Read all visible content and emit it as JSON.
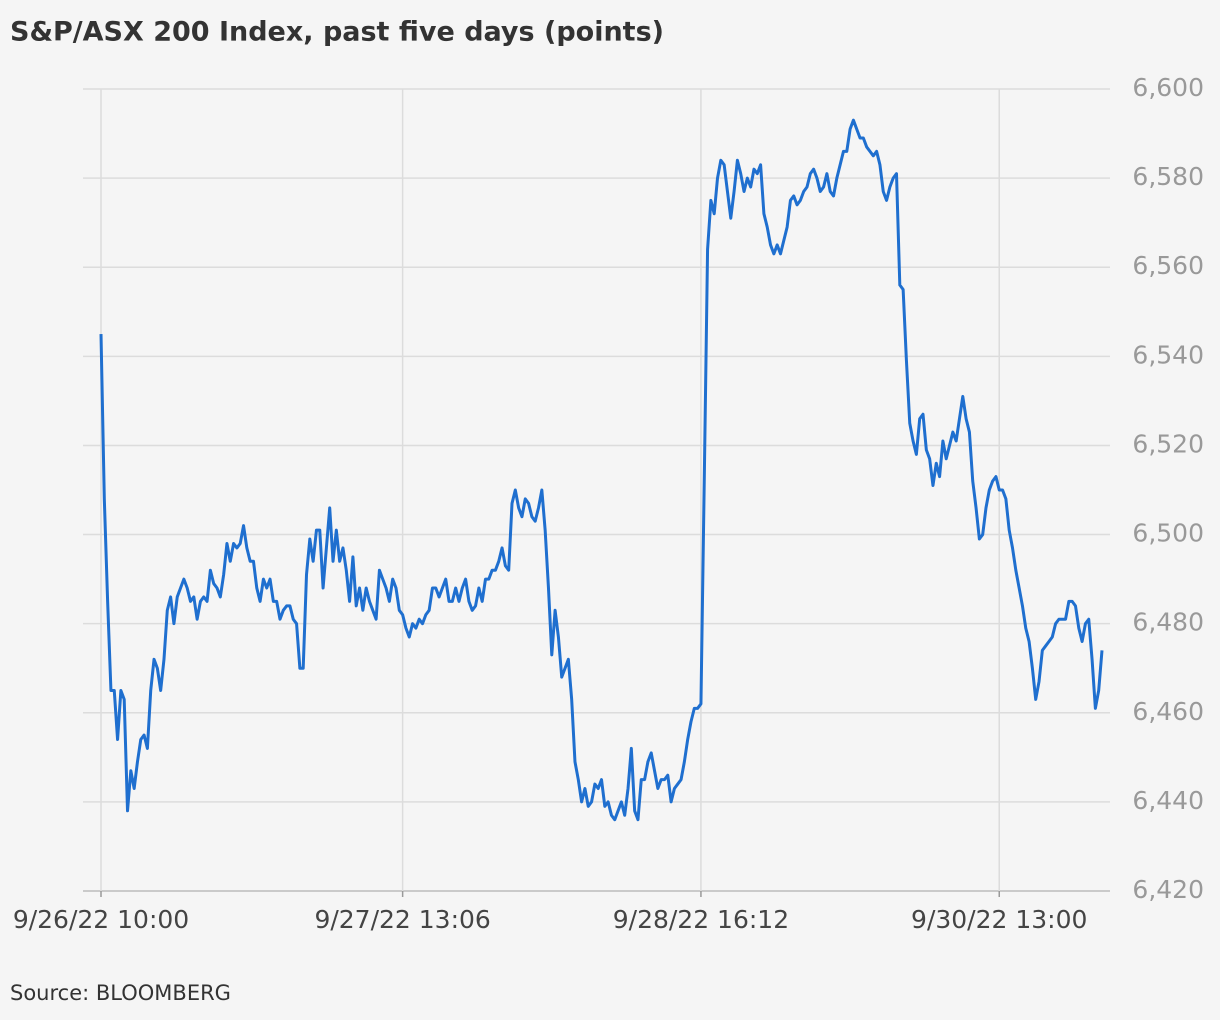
{
  "chart_data": {
    "type": "line",
    "title": "S&P/ASX 200 Index, past five days (points)",
    "source": "Source: BLOOMBERG",
    "color": "#1f6fcf",
    "grid": true,
    "ylim": [
      6420,
      6600
    ],
    "yticks": [
      {
        "value": 6420,
        "label": "6,420"
      },
      {
        "value": 6440,
        "label": "6,440"
      },
      {
        "value": 6460,
        "label": "6,460"
      },
      {
        "value": 6480,
        "label": "6,480"
      },
      {
        "value": 6500,
        "label": "6,500"
      },
      {
        "value": 6520,
        "label": "6,520"
      },
      {
        "value": 6540,
        "label": "6,540"
      },
      {
        "value": 6560,
        "label": "6,560"
      },
      {
        "value": 6580,
        "label": "6,580"
      },
      {
        "value": 6600,
        "label": "6,600"
      }
    ],
    "categories": [
      "9/26/22 10:00",
      null,
      null,
      null,
      null,
      null,
      null,
      null,
      null,
      null,
      null,
      null,
      null,
      null,
      null,
      null,
      null,
      null,
      null,
      null,
      null,
      null,
      null,
      null,
      null,
      null,
      null,
      null,
      null,
      null,
      null,
      null,
      null,
      null,
      null,
      null,
      null,
      null,
      null,
      null,
      null,
      null,
      null,
      null,
      null,
      null,
      null,
      null,
      null,
      null,
      null,
      null,
      null,
      null,
      null,
      null,
      null,
      null,
      null,
      null,
      null,
      null,
      null,
      null,
      null,
      null,
      null,
      null,
      null,
      null,
      null,
      null,
      null,
      null,
      null,
      null,
      null,
      null,
      null,
      null,
      null,
      null,
      null,
      null,
      null,
      null,
      null,
      null,
      null,
      null,
      null,
      "9/27/22 13:06",
      null,
      null,
      null,
      null,
      null,
      null,
      null,
      null,
      null,
      null,
      null,
      null,
      null,
      null,
      null,
      null,
      null,
      null,
      null,
      null,
      null,
      null,
      null,
      null,
      null,
      null,
      null,
      null,
      null,
      null,
      null,
      null,
      null,
      null,
      null,
      null,
      null,
      null,
      null,
      null,
      null,
      null,
      null,
      null,
      null,
      null,
      null,
      null,
      null,
      null,
      null,
      null,
      null,
      null,
      null,
      null,
      null,
      null,
      null,
      null,
      null,
      null,
      null,
      null,
      null,
      null,
      null,
      null,
      null,
      null,
      null,
      null,
      null,
      null,
      null,
      null,
      null,
      null,
      null,
      null,
      null,
      null,
      null,
      null,
      null,
      null,
      null,
      null,
      null,
      "9/28/22 16:12",
      null,
      null,
      null,
      null,
      null,
      null,
      null,
      null,
      null,
      null,
      null,
      null,
      null,
      null,
      null,
      null,
      null,
      null,
      null,
      null,
      null,
      null,
      null,
      null,
      null,
      null,
      null,
      null,
      null,
      null,
      null,
      null,
      null,
      null,
      null,
      null,
      null,
      null,
      null,
      null,
      null,
      null,
      null,
      null,
      null,
      null,
      null,
      null,
      null,
      null,
      null,
      null,
      null,
      null,
      null,
      null,
      null,
      null,
      null,
      null,
      null,
      null,
      null,
      null,
      null,
      null,
      null,
      null,
      null,
      null,
      null,
      null,
      null,
      null,
      null,
      null,
      null,
      null,
      null,
      null,
      null,
      null,
      null,
      null,
      null,
      null,
      null,
      null,
      null,
      "9/30/22 13:00",
      null,
      null,
      null,
      null,
      null,
      null,
      null,
      null,
      null,
      null,
      null,
      null,
      null,
      null,
      null,
      null,
      null,
      null,
      null,
      null,
      null,
      null,
      null,
      null,
      null,
      null,
      null,
      null,
      null,
      null,
      null
    ],
    "values": [
      6545,
      6508,
      6485,
      6465,
      6465,
      6454,
      6465,
      6463,
      6438,
      6447,
      6443,
      6449,
      6454,
      6455,
      6452,
      6465,
      6472,
      6470,
      6465,
      6472,
      6483,
      6486,
      6480,
      6486,
      6488,
      6490,
      6488,
      6485,
      6486,
      6481,
      6485,
      6486,
      6485,
      6492,
      6489,
      6488,
      6486,
      6491,
      6498,
      6494,
      6498,
      6497,
      6498,
      6502,
      6497,
      6494,
      6494,
      6488,
      6485,
      6490,
      6488,
      6490,
      6485,
      6485,
      6481,
      6483,
      6484,
      6484,
      6481,
      6480,
      6470,
      6470,
      6491,
      6499,
      6494,
      6501,
      6501,
      6488,
      6497,
      6506,
      6494,
      6501,
      6494,
      6497,
      6492,
      6485,
      6495,
      6484,
      6488,
      6483,
      6488,
      6485,
      6483,
      6481,
      6492,
      6490,
      6488,
      6485,
      6490,
      6488,
      6483,
      6482,
      6479,
      6477,
      6480,
      6479,
      6481,
      6480,
      6482,
      6483,
      6488,
      6488,
      6486,
      6488,
      6490,
      6485,
      6485,
      6488,
      6485,
      6488,
      6490,
      6485,
      6483,
      6484,
      6488,
      6485,
      6490,
      6490,
      6492,
      6492,
      6494,
      6497,
      6493,
      6492,
      6507,
      6510,
      6506,
      6504,
      6508,
      6507,
      6504,
      6503,
      6506,
      6510,
      6501,
      6488,
      6473,
      6483,
      6477,
      6468,
      6470,
      6472,
      6463,
      6449,
      6445,
      6440,
      6443,
      6439,
      6440,
      6444,
      6443,
      6445,
      6439,
      6440,
      6437,
      6436,
      6438,
      6440,
      6437,
      6443,
      6452,
      6438,
      6436,
      6445,
      6445,
      6449,
      6451,
      6447,
      6443,
      6445,
      6445,
      6446,
      6440,
      6443,
      6444,
      6445,
      6449,
      6454,
      6458,
      6461,
      6461,
      6462,
      6512,
      6564,
      6575,
      6572,
      6580,
      6584,
      6583,
      6577,
      6571,
      6577,
      6584,
      6581,
      6577,
      6580,
      6578,
      6582,
      6581,
      6583,
      6572,
      6569,
      6565,
      6563,
      6565,
      6563,
      6566,
      6569,
      6575,
      6576,
      6574,
      6575,
      6577,
      6578,
      6581,
      6582,
      6580,
      6577,
      6578,
      6581,
      6577,
      6576,
      6580,
      6583,
      6586,
      6586,
      6591,
      6593,
      6591,
      6589,
      6589,
      6587,
      6586,
      6585,
      6586,
      6583,
      6577,
      6575,
      6578,
      6580,
      6581,
      6556,
      6555,
      6539,
      6525,
      6521,
      6518,
      6526,
      6527,
      6519,
      6517,
      6511,
      6516,
      6513,
      6521,
      6517,
      6520,
      6523,
      6521,
      6526,
      6531,
      6526,
      6523,
      6512,
      6506,
      6499,
      6500,
      6506,
      6510,
      6512,
      6513,
      6510,
      6510,
      6508,
      6501,
      6497,
      6492,
      6488,
      6484,
      6479,
      6476,
      6470,
      6463,
      6467,
      6474,
      6475,
      6476,
      6477,
      6480,
      6481,
      6481,
      6481,
      6485,
      6485,
      6484,
      6479,
      6476,
      6480,
      6481,
      6472,
      6461,
      6465,
      6474
    ]
  }
}
